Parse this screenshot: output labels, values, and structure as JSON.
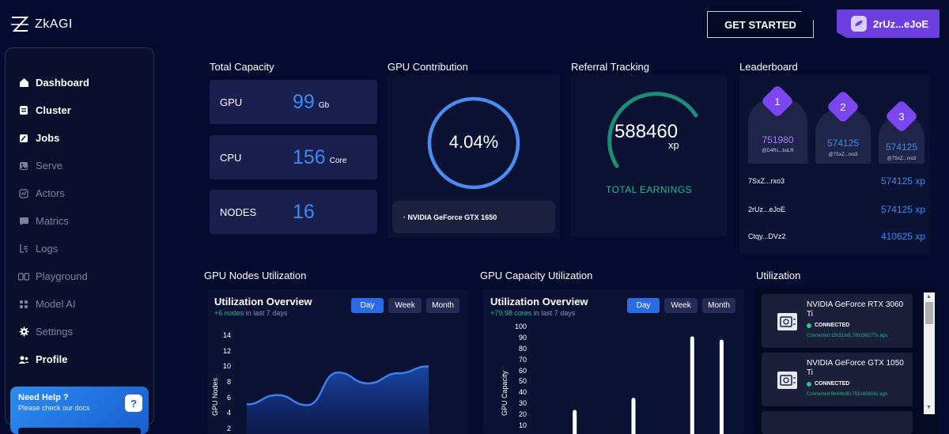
{
  "app": {
    "name": "ZkAGI"
  },
  "header": {
    "get_started": "GET STARTED",
    "wallet": "2rUz...eJoE"
  },
  "sidebar": {
    "items": [
      {
        "label": "Dashboard",
        "icon": "home-icon"
      },
      {
        "label": "Cluster",
        "icon": "cluster-icon"
      },
      {
        "label": "Jobs",
        "icon": "jobs-icon"
      },
      {
        "label": "Serve",
        "icon": "serve-icon"
      },
      {
        "label": "Actors",
        "icon": "actors-icon"
      },
      {
        "label": "Matrics",
        "icon": "matrics-icon"
      },
      {
        "label": "Logs",
        "icon": "logs-icon"
      },
      {
        "label": "Playground",
        "icon": "playground-icon"
      },
      {
        "label": "Model AI",
        "icon": "model-ai-icon"
      },
      {
        "label": "Settings",
        "icon": "settings-icon"
      },
      {
        "label": "Profile",
        "icon": "profile-icon"
      }
    ],
    "help": {
      "title": "Need Help ?",
      "subtitle": "Please check our docs"
    }
  },
  "capacity": {
    "title": "Total Capacity",
    "gpu": {
      "label": "GPU",
      "value": "99",
      "unit": "Gb"
    },
    "cpu": {
      "label": "CPU",
      "value": "156",
      "unit": "Core"
    },
    "nodes": {
      "label": "NODES",
      "value": "16"
    }
  },
  "gpu_contribution": {
    "title": "GPU Contribution",
    "percent_text": "4.04%",
    "percent": 4.04,
    "device": "· NVIDIA GeForce GTX 1650",
    "ring_color": "#4a8cf2"
  },
  "referral": {
    "title": "Referral Tracking",
    "value": "588460",
    "unit": "xp",
    "label": "TOTAL EARNINGS",
    "arc_color": "#1a8f74"
  },
  "leaderboard": {
    "title": "Leaderboard",
    "podium": [
      {
        "rank": "1",
        "score": "751980",
        "id": "@D4Rs...buLR",
        "score_color": "#a97bff"
      },
      {
        "rank": "2",
        "score": "574125",
        "id": "@7SxZ...rxo3",
        "score_color": "#3b8bf0"
      },
      {
        "rank": "3",
        "score": "574125",
        "id": "@7SxZ...rxo3",
        "score_color": "#3b8bf0"
      }
    ],
    "rows": [
      {
        "name": "7SxZ...rxo3",
        "score": "574125 xp"
      },
      {
        "name": "2rUz...eJoE",
        "score": "574125 xp"
      },
      {
        "name": "Ctqy...DVz2",
        "score": "410625 xp"
      }
    ]
  },
  "nodes_util": {
    "section_title": "GPU Nodes Utilization",
    "title": "Utilization Overview",
    "delta": "+6 nodes",
    "period": " in last 7 days",
    "tabs": [
      "Day",
      "Week",
      "Month"
    ],
    "active_tab": "Day",
    "ylabel": "GPU Nodes",
    "yticks": [
      "14",
      "12",
      "10",
      "8",
      "6",
      "4",
      "2"
    ]
  },
  "capacity_util": {
    "section_title": "GPU Capacity Utilization",
    "title": "Utilization Overview",
    "delta": "+79.98 cores",
    "period": " in last 7 days",
    "tabs": [
      "Day",
      "Week",
      "Month"
    ],
    "active_tab": "Day",
    "ylabel": "GPU Capacity",
    "yticks": [
      "100",
      "90",
      "80",
      "70",
      "60",
      "50",
      "40",
      "30",
      "20",
      "10"
    ]
  },
  "chart_data": [
    {
      "type": "area",
      "ylabel": "GPU Nodes",
      "ylim": [
        0,
        14
      ],
      "series": [
        {
          "values": [
            5.1,
            6.3,
            5.0,
            9.2,
            7.8,
            9.1,
            10.0
          ]
        }
      ]
    },
    {
      "type": "bar",
      "ylabel": "GPU Capacity",
      "ylim": [
        0,
        100
      ],
      "series": [
        {
          "values": [
            0,
            24,
            0,
            35,
            0,
            91,
            88
          ]
        }
      ]
    }
  ],
  "utilization": {
    "title": "Utilization",
    "devices": [
      {
        "name": "NVIDIA GeForce RTX 3060 Ti",
        "status": "CONNECTED",
        "time": "Connected 15h51m8.700156277s ago"
      },
      {
        "name": "NVIDIA GeForce GTX 1050 Ti",
        "status": "CONNECTED",
        "time": "Connected 6h44m30.703160804s ago"
      }
    ]
  }
}
